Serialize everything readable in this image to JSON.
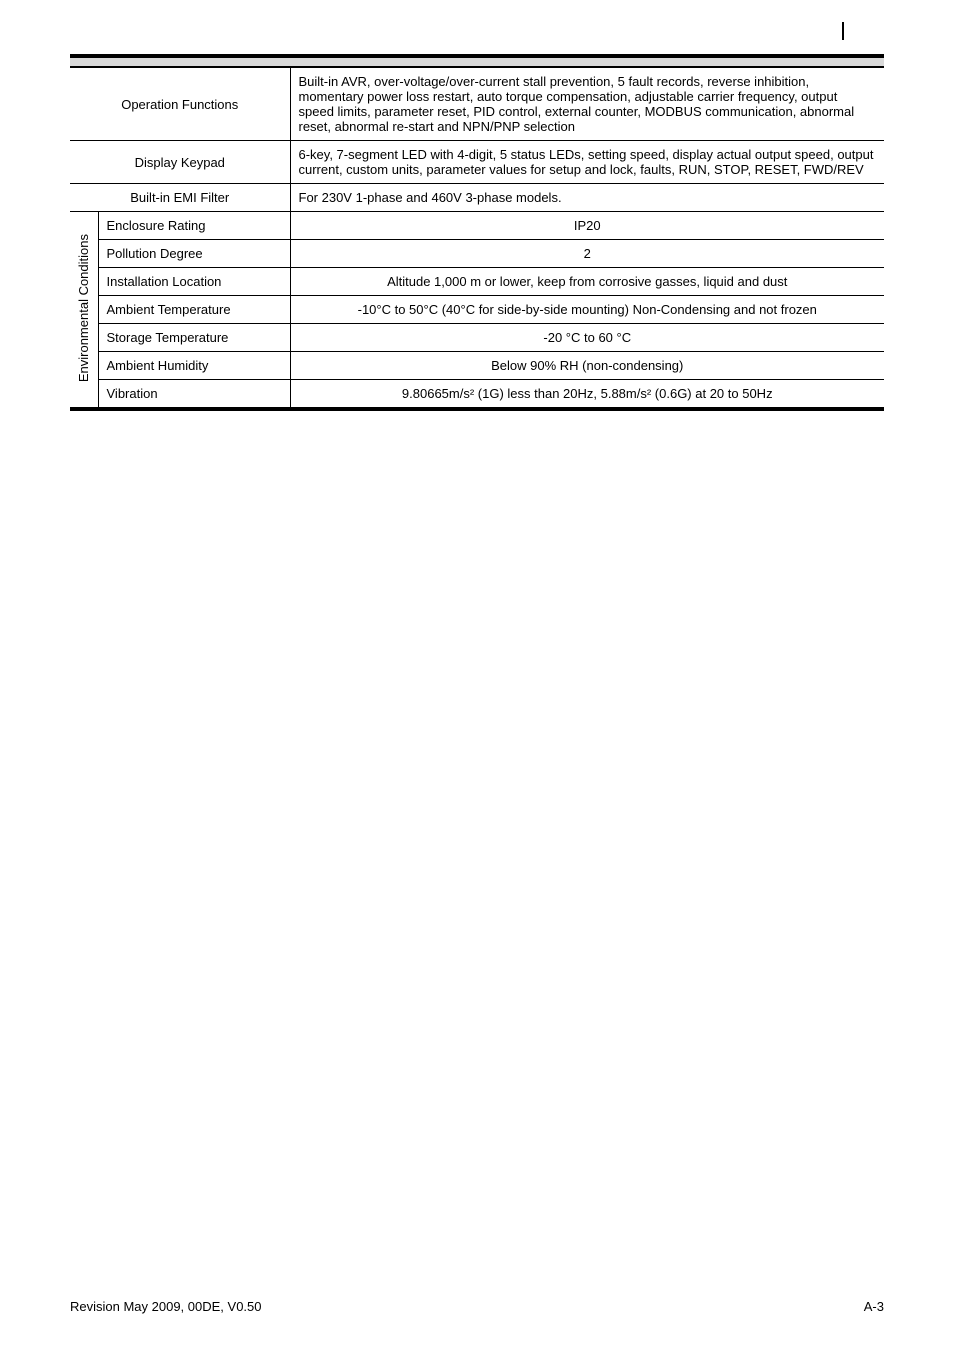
{
  "rows": {
    "operation_functions": {
      "label": "Operation Functions",
      "value": "Built-in AVR, over-voltage/over-current stall prevention, 5 fault records, reverse inhibition, momentary power loss restart, auto torque compensation, adjustable carrier frequency, output speed limits, parameter reset, PID control, external counter, MODBUS communication, abnormal reset, abnormal re-start and NPN/PNP selection"
    },
    "display_keypad": {
      "label": "Display Keypad",
      "value": "6-key, 7-segment LED with 4-digit, 5 status LEDs, setting speed, display actual output speed, output current, custom units, parameter values for setup and lock, faults, RUN, STOP, RESET, FWD/REV"
    },
    "emi_filter": {
      "label": "Built-in EMI Filter",
      "value": "For 230V 1-phase and 460V 3-phase models."
    }
  },
  "env_group_label": "Environmental Conditions",
  "env_rows": {
    "enclosure": {
      "label": "Enclosure Rating",
      "value": "IP20"
    },
    "pollution": {
      "label": "Pollution Degree",
      "value": "2"
    },
    "install_loc": {
      "label": "Installation Location",
      "value": "Altitude 1,000 m or lower, keep from corrosive gasses, liquid and dust"
    },
    "ambient_temp": {
      "label": "Ambient Temperature",
      "value": "-10°C to 50°C (40°C for side-by-side mounting) Non-Condensing and not frozen"
    },
    "storage_temp": {
      "label": "Storage Temperature",
      "value": "-20 °C to 60 °C"
    },
    "ambient_hum": {
      "label": "Ambient Humidity",
      "value": "Below 90% RH (non-condensing)"
    },
    "vibration": {
      "label": "Vibration",
      "value": "9.80665m/s² (1G) less than 20Hz, 5.88m/s² (0.6G) at 20 to 50Hz"
    }
  },
  "footer": {
    "left": "Revision May 2009, 00DE, V0.50",
    "right": "A-3"
  },
  "colors": {
    "grey_gap": "#d9d9d9",
    "black": "#000000",
    "background": "#ffffff"
  },
  "font": {
    "base_size": 13,
    "family": "Arial"
  }
}
